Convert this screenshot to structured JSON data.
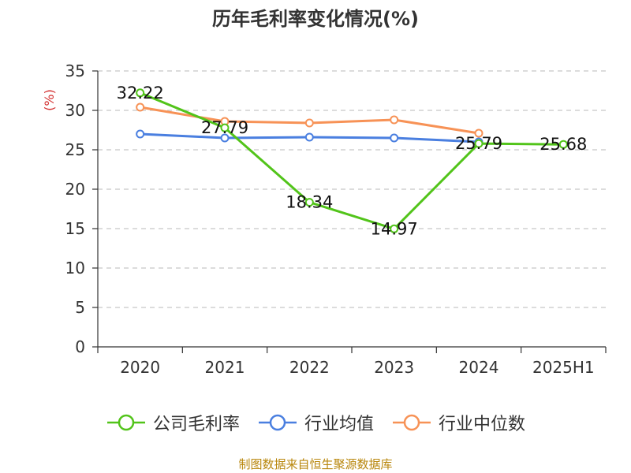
{
  "chart_data": {
    "type": "line",
    "title": "历年毛利率变化情况(%)",
    "ylabel": "(%)",
    "xlabel": "",
    "categories": [
      "2020",
      "2021",
      "2022",
      "2023",
      "2024",
      "2025H1"
    ],
    "ylim": [
      0,
      35
    ],
    "yticks": [
      0,
      5,
      10,
      15,
      20,
      25,
      30,
      35
    ],
    "grid": true,
    "legend_position": "bottom",
    "series": [
      {
        "name": "公司毛利率",
        "color": "#52c41a",
        "values": [
          32.22,
          27.79,
          18.34,
          14.97,
          25.79,
          25.68
        ],
        "labels": [
          "32.22",
          "27.79",
          "18.34",
          "14.97",
          "25.79",
          "25.68"
        ]
      },
      {
        "name": "行业均值",
        "color": "#4a7fe0",
        "values": [
          27.0,
          26.5,
          26.6,
          26.5,
          26.0,
          null
        ]
      },
      {
        "name": "行业中位数",
        "color": "#f79256",
        "values": [
          30.4,
          28.6,
          28.4,
          28.8,
          27.1,
          null
        ]
      }
    ]
  },
  "footer": "制图数据来自恒生聚源数据库"
}
